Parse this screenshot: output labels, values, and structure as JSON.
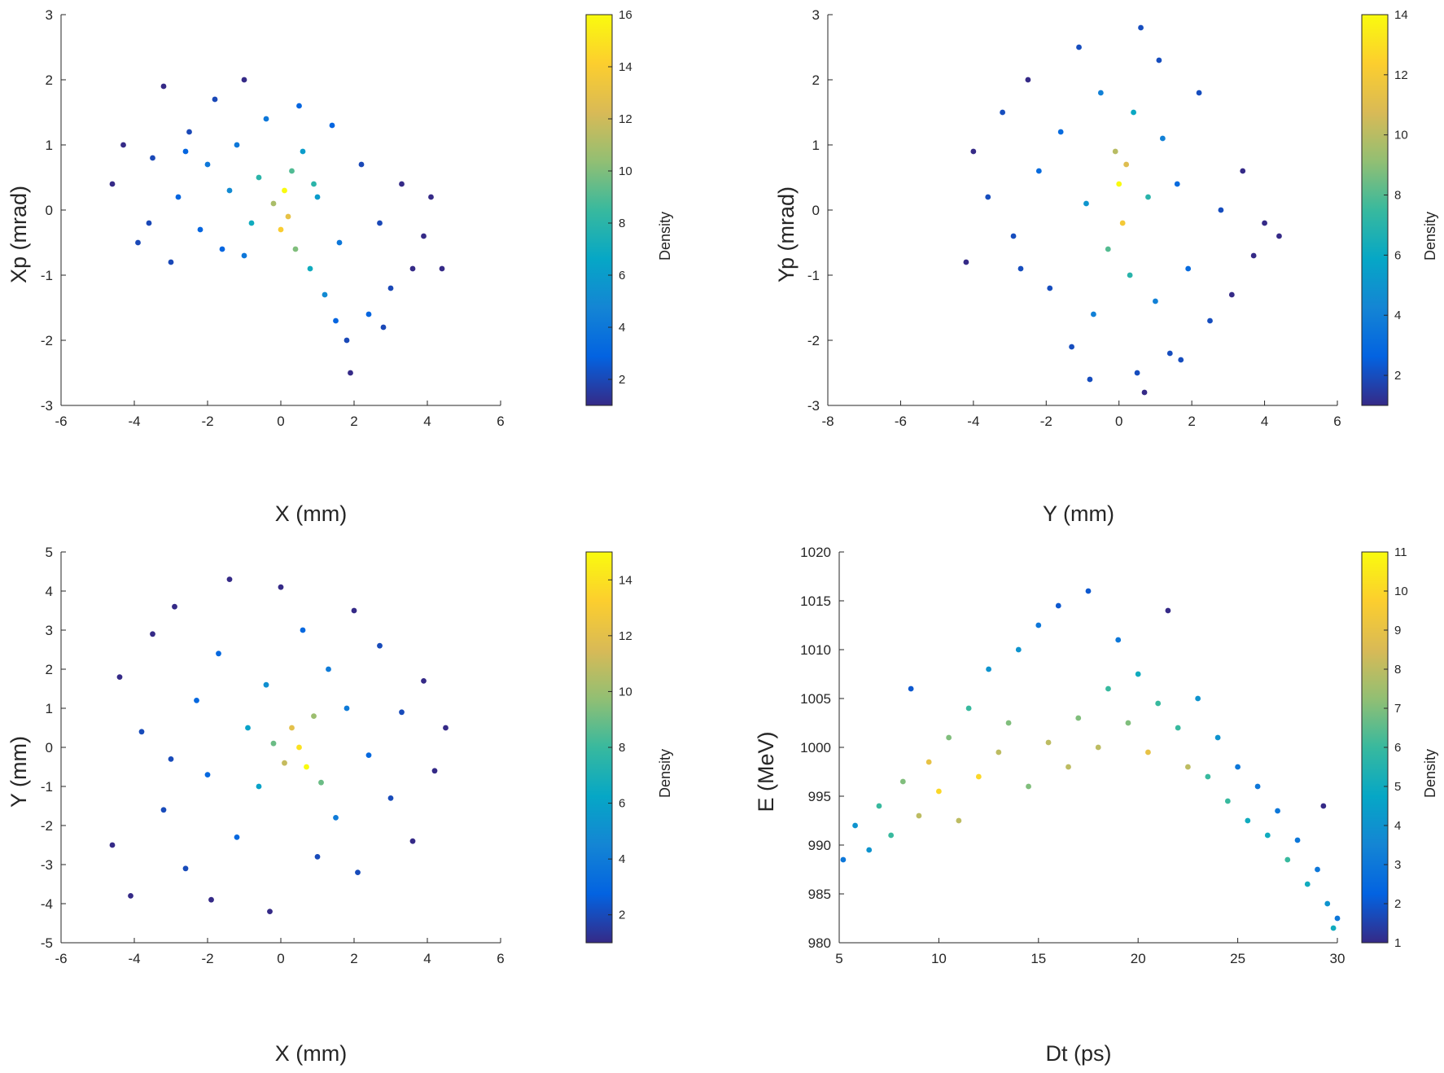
{
  "chart_data": [
    {
      "type": "scatter",
      "xlabel": "X (mm)",
      "ylabel": "Xp (mrad)",
      "xlim": [
        -6,
        6
      ],
      "ylim": [
        -3,
        3
      ],
      "xticks": [
        -6,
        -4,
        -2,
        0,
        2,
        4,
        6
      ],
      "yticks": [
        -3,
        -2,
        -1,
        0,
        1,
        2,
        3
      ],
      "colorbar": {
        "label": "Density",
        "range": [
          1,
          16
        ],
        "ticks": [
          2,
          4,
          6,
          8,
          10,
          12,
          14,
          16
        ]
      },
      "points": [
        [
          -4.6,
          0.4,
          1
        ],
        [
          -4.3,
          1.0,
          1
        ],
        [
          -3.9,
          -0.5,
          2
        ],
        [
          -3.5,
          0.8,
          2
        ],
        [
          -3.2,
          1.9,
          1
        ],
        [
          -3.0,
          -0.8,
          2
        ],
        [
          -2.8,
          0.2,
          3
        ],
        [
          -2.5,
          1.2,
          2
        ],
        [
          -2.2,
          -0.3,
          3
        ],
        [
          -2.0,
          0.7,
          4
        ],
        [
          -1.8,
          1.7,
          2
        ],
        [
          -1.6,
          -0.6,
          3
        ],
        [
          -1.4,
          0.3,
          5
        ],
        [
          -1.2,
          1.0,
          4
        ],
        [
          -1.0,
          2.0,
          1
        ],
        [
          -0.8,
          -0.2,
          7
        ],
        [
          -0.6,
          0.5,
          8
        ],
        [
          -0.4,
          1.4,
          4
        ],
        [
          -0.2,
          0.1,
          11
        ],
        [
          0.0,
          -0.3,
          14
        ],
        [
          0.1,
          0.3,
          16
        ],
        [
          0.2,
          -0.1,
          13
        ],
        [
          0.3,
          0.6,
          9
        ],
        [
          0.4,
          -0.6,
          10
        ],
        [
          0.6,
          0.9,
          6
        ],
        [
          0.8,
          -0.9,
          7
        ],
        [
          1.0,
          0.2,
          6
        ],
        [
          1.2,
          -1.3,
          5
        ],
        [
          1.4,
          1.3,
          3
        ],
        [
          1.6,
          -0.5,
          4
        ],
        [
          1.8,
          -2.0,
          2
        ],
        [
          1.9,
          -2.5,
          1
        ],
        [
          2.2,
          0.7,
          2
        ],
        [
          2.4,
          -1.6,
          3
        ],
        [
          2.7,
          -0.2,
          2
        ],
        [
          3.0,
          -1.2,
          2
        ],
        [
          3.3,
          0.4,
          1
        ],
        [
          3.6,
          -0.9,
          1
        ],
        [
          3.9,
          -0.4,
          1
        ],
        [
          4.1,
          0.2,
          1
        ],
        [
          4.4,
          -0.9,
          1
        ],
        [
          -3.6,
          -0.2,
          2
        ],
        [
          -1.0,
          -0.7,
          4
        ],
        [
          0.9,
          0.4,
          8
        ],
        [
          2.8,
          -1.8,
          2
        ],
        [
          -2.6,
          0.9,
          3
        ],
        [
          1.5,
          -1.7,
          3
        ],
        [
          0.5,
          1.6,
          3
        ]
      ]
    },
    {
      "type": "scatter",
      "xlabel": "Y (mm)",
      "ylabel": "Yp (mrad)",
      "xlim": [
        -8,
        6
      ],
      "ylim": [
        -3,
        3
      ],
      "xticks": [
        -8,
        -6,
        -4,
        -2,
        0,
        2,
        4,
        6
      ],
      "yticks": [
        -3,
        -2,
        -1,
        0,
        1,
        2,
        3
      ],
      "colorbar": {
        "label": "Density",
        "range": [
          1,
          14
        ],
        "ticks": [
          2,
          4,
          6,
          8,
          10,
          12,
          14
        ]
      },
      "points": [
        [
          -4.2,
          -0.8,
          1
        ],
        [
          -4.0,
          0.9,
          1
        ],
        [
          -3.6,
          0.2,
          2
        ],
        [
          -3.2,
          1.5,
          2
        ],
        [
          -2.9,
          -0.4,
          2
        ],
        [
          -2.5,
          2.0,
          1
        ],
        [
          -2.2,
          0.6,
          3
        ],
        [
          -1.9,
          -1.2,
          2
        ],
        [
          -1.6,
          1.2,
          3
        ],
        [
          -1.3,
          -2.1,
          2
        ],
        [
          -1.1,
          2.5,
          2
        ],
        [
          -0.9,
          0.1,
          5
        ],
        [
          -0.7,
          -1.6,
          4
        ],
        [
          -0.5,
          1.8,
          4
        ],
        [
          -0.3,
          -0.6,
          8
        ],
        [
          -0.1,
          0.9,
          10
        ],
        [
          0.0,
          0.4,
          14
        ],
        [
          0.1,
          -0.2,
          12
        ],
        [
          0.2,
          0.7,
          11
        ],
        [
          0.3,
          -1.0,
          7
        ],
        [
          0.4,
          1.5,
          6
        ],
        [
          0.5,
          -2.5,
          2
        ],
        [
          0.6,
          2.8,
          2
        ],
        [
          0.8,
          0.2,
          7
        ],
        [
          1.0,
          -1.4,
          4
        ],
        [
          1.2,
          1.1,
          4
        ],
        [
          1.4,
          -2.2,
          2
        ],
        [
          1.6,
          0.4,
          3
        ],
        [
          1.9,
          -0.9,
          3
        ],
        [
          2.2,
          1.8,
          2
        ],
        [
          2.5,
          -1.7,
          2
        ],
        [
          2.8,
          0.0,
          2
        ],
        [
          3.1,
          -1.3,
          1
        ],
        [
          3.4,
          0.6,
          1
        ],
        [
          3.7,
          -0.7,
          1
        ],
        [
          4.0,
          -0.2,
          1
        ],
        [
          4.4,
          -0.4,
          1
        ],
        [
          -2.7,
          -0.9,
          2
        ],
        [
          1.1,
          2.3,
          2
        ],
        [
          0.7,
          -2.8,
          1
        ],
        [
          -0.8,
          -2.6,
          2
        ],
        [
          1.7,
          -2.3,
          2
        ]
      ]
    },
    {
      "type": "scatter",
      "xlabel": "X (mm)",
      "ylabel": "Y (mm)",
      "xlim": [
        -6,
        6
      ],
      "ylim": [
        -5,
        5
      ],
      "xticks": [
        -6,
        -4,
        -2,
        0,
        2,
        4,
        6
      ],
      "yticks": [
        -5,
        -4,
        -3,
        -2,
        -1,
        0,
        1,
        2,
        3,
        4,
        5
      ],
      "colorbar": {
        "label": "Density",
        "range": [
          1,
          15
        ],
        "ticks": [
          2,
          4,
          6,
          8,
          10,
          12,
          14
        ]
      },
      "points": [
        [
          -4.6,
          -2.5,
          1
        ],
        [
          -4.4,
          1.8,
          1
        ],
        [
          -4.1,
          -3.8,
          1
        ],
        [
          -3.8,
          0.4,
          2
        ],
        [
          -3.5,
          2.9,
          1
        ],
        [
          -3.2,
          -1.6,
          2
        ],
        [
          -2.9,
          3.6,
          1
        ],
        [
          -2.6,
          -3.1,
          2
        ],
        [
          -2.3,
          1.2,
          3
        ],
        [
          -2.0,
          -0.7,
          3
        ],
        [
          -1.7,
          2.4,
          3
        ],
        [
          -1.4,
          4.3,
          1
        ],
        [
          -1.2,
          -2.3,
          3
        ],
        [
          -0.9,
          0.5,
          6
        ],
        [
          -0.6,
          -1.0,
          6
        ],
        [
          -0.4,
          1.6,
          5
        ],
        [
          -0.2,
          0.1,
          9
        ],
        [
          0.0,
          4.1,
          1
        ],
        [
          0.1,
          -0.4,
          11
        ],
        [
          0.3,
          0.5,
          12
        ],
        [
          0.5,
          0.0,
          14
        ],
        [
          0.7,
          -0.5,
          15
        ],
        [
          0.9,
          0.8,
          10
        ],
        [
          1.1,
          -0.9,
          9
        ],
        [
          1.3,
          2.0,
          4
        ],
        [
          1.5,
          -1.8,
          4
        ],
        [
          1.8,
          1.0,
          4
        ],
        [
          2.1,
          -3.2,
          2
        ],
        [
          2.4,
          -0.2,
          3
        ],
        [
          2.7,
          2.6,
          2
        ],
        [
          3.0,
          -1.3,
          2
        ],
        [
          3.3,
          0.9,
          2
        ],
        [
          3.6,
          -2.4,
          1
        ],
        [
          3.9,
          1.7,
          1
        ],
        [
          4.2,
          -0.6,
          1
        ],
        [
          4.5,
          0.5,
          1
        ],
        [
          -0.3,
          -4.2,
          1
        ],
        [
          0.6,
          3.0,
          3
        ],
        [
          -3.0,
          -0.3,
          2
        ],
        [
          2.0,
          3.5,
          1
        ],
        [
          -1.9,
          -3.9,
          1
        ],
        [
          1.0,
          -2.8,
          2
        ]
      ]
    },
    {
      "type": "scatter",
      "xlabel": "Dt (ps)",
      "ylabel": "E (MeV)",
      "xlim": [
        5,
        30
      ],
      "ylim": [
        980,
        1020
      ],
      "xticks": [
        5,
        10,
        15,
        20,
        25,
        30
      ],
      "yticks": [
        980,
        985,
        990,
        995,
        1000,
        1005,
        1010,
        1015,
        1020
      ],
      "colorbar": {
        "label": "Density",
        "range": [
          1,
          11
        ],
        "ticks": [
          1,
          2,
          3,
          4,
          5,
          6,
          7,
          8,
          9,
          10,
          11
        ]
      },
      "points": [
        [
          5.2,
          988.5,
          3
        ],
        [
          5.8,
          992.0,
          4
        ],
        [
          6.5,
          989.5,
          4
        ],
        [
          7.0,
          994.0,
          6
        ],
        [
          7.6,
          991.0,
          6
        ],
        [
          8.2,
          996.5,
          7
        ],
        [
          8.6,
          1006.0,
          2
        ],
        [
          9.0,
          993.0,
          8
        ],
        [
          9.5,
          998.5,
          9
        ],
        [
          10.0,
          995.5,
          10
        ],
        [
          10.5,
          1001.0,
          7
        ],
        [
          11.0,
          992.5,
          8
        ],
        [
          11.5,
          1004.0,
          6
        ],
        [
          12.0,
          997.0,
          10
        ],
        [
          12.5,
          1008.0,
          4
        ],
        [
          13.0,
          999.5,
          8
        ],
        [
          13.5,
          1002.5,
          7
        ],
        [
          14.0,
          1010.0,
          4
        ],
        [
          14.5,
          996.0,
          7
        ],
        [
          15.0,
          1012.5,
          3
        ],
        [
          15.5,
          1000.5,
          8
        ],
        [
          16.0,
          1014.5,
          2
        ],
        [
          16.5,
          998.0,
          8
        ],
        [
          17.0,
          1003.0,
          7
        ],
        [
          17.5,
          1016.0,
          2
        ],
        [
          18.0,
          1000.0,
          8
        ],
        [
          18.5,
          1006.0,
          6
        ],
        [
          19.0,
          1011.0,
          3
        ],
        [
          19.5,
          1002.5,
          7
        ],
        [
          20.0,
          1007.5,
          5
        ],
        [
          20.5,
          999.5,
          9
        ],
        [
          21.0,
          1004.5,
          6
        ],
        [
          21.5,
          1014.0,
          1
        ],
        [
          22.0,
          1002.0,
          6
        ],
        [
          22.5,
          998.0,
          8
        ],
        [
          23.0,
          1005.0,
          4
        ],
        [
          23.5,
          997.0,
          6
        ],
        [
          24.0,
          1001.0,
          4
        ],
        [
          24.5,
          994.5,
          6
        ],
        [
          25.0,
          998.0,
          3
        ],
        [
          25.5,
          992.5,
          5
        ],
        [
          26.0,
          996.0,
          3
        ],
        [
          26.5,
          991.0,
          5
        ],
        [
          27.0,
          993.5,
          3
        ],
        [
          27.5,
          988.5,
          6
        ],
        [
          28.0,
          990.5,
          3
        ],
        [
          28.5,
          986.0,
          5
        ],
        [
          29.0,
          987.5,
          3
        ],
        [
          29.3,
          994.0,
          1
        ],
        [
          29.5,
          984.0,
          4
        ],
        [
          29.8,
          981.5,
          5
        ],
        [
          30.0,
          982.5,
          3
        ]
      ]
    }
  ]
}
